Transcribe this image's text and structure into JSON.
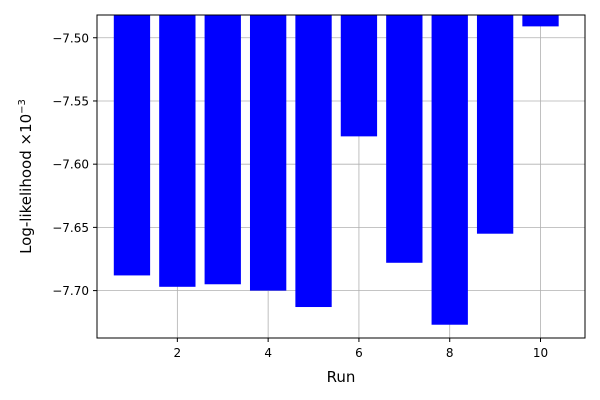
{
  "chart_data": {
    "type": "bar",
    "x": [
      1,
      2,
      3,
      4,
      5,
      6,
      7,
      8,
      9,
      10
    ],
    "values": [
      -7.688,
      -7.697,
      -7.695,
      -7.7,
      -7.713,
      -7.578,
      -7.678,
      -7.727,
      -7.655,
      -7.491
    ],
    "bar_bottom": -7.482,
    "xlabel": "Run",
    "ylabel_base": "Log-likelihood ×10",
    "ylabel_exp": "−3",
    "xlim": [
      0.23,
      10.98
    ],
    "ylim": [
      -7.7375,
      -7.482
    ],
    "xticks": [
      2,
      4,
      6,
      8,
      10
    ],
    "xtick_labels": [
      "2",
      "4",
      "6",
      "8",
      "10"
    ],
    "yticks": [
      -7.7,
      -7.65,
      -7.6,
      -7.55,
      -7.5
    ],
    "ytick_labels": [
      "−7.70",
      "−7.65",
      "−7.60",
      "−7.55",
      "−7.50"
    ],
    "grid": true,
    "bar_color": "#0000ff",
    "grid_color": "#b0b0b0"
  }
}
